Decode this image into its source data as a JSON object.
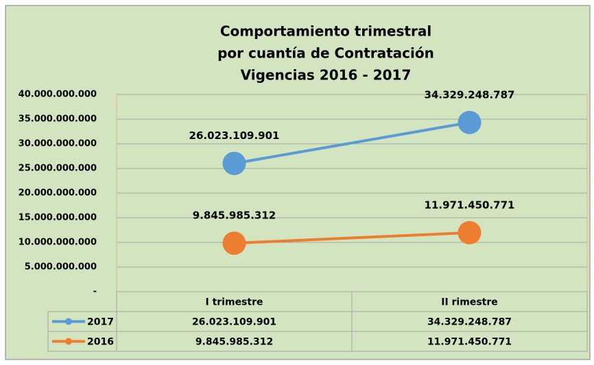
{
  "chart_data": {
    "type": "line",
    "title": [
      "Comportamiento trimestral",
      "por cuantía de Contratación",
      "Vigencias 2016 - 2017"
    ],
    "categories": [
      "I trimestre",
      "II rimestre"
    ],
    "series": [
      {
        "name": "2017",
        "color": "#5b9bd5",
        "values": [
          26023109901,
          34329248787
        ],
        "value_labels": [
          "26.023.109.901",
          "34.329.248.787"
        ]
      },
      {
        "name": "2016",
        "color": "#ed7d31",
        "values": [
          9845985312,
          11971450771
        ],
        "value_labels": [
          "9.845.985.312",
          "11.971.450.771"
        ]
      }
    ],
    "ylim": [
      0,
      40000000000
    ],
    "yticks": [
      {
        "value": 0,
        "label": "-"
      },
      {
        "value": 5000000000,
        "label": "5.000.000.000"
      },
      {
        "value": 10000000000,
        "label": "10.000.000.000"
      },
      {
        "value": 15000000000,
        "label": "15.000.000.000"
      },
      {
        "value": 20000000000,
        "label": "20.000.000.000"
      },
      {
        "value": 25000000000,
        "label": "25.000.000.000"
      },
      {
        "value": 30000000000,
        "label": "30.000.000.000"
      },
      {
        "value": 35000000000,
        "label": "35.000.000.000"
      },
      {
        "value": 40000000000,
        "label": "40.000.000.000"
      }
    ],
    "grid": true
  }
}
